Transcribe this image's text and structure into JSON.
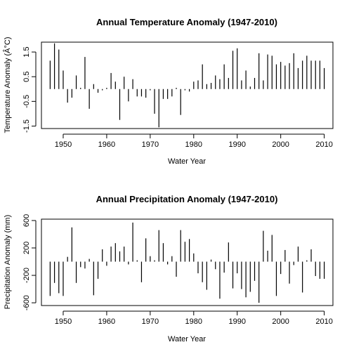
{
  "chart_data": [
    {
      "type": "bar",
      "title": "Annual Temperature Anomaly (1947-2010)",
      "xlabel": "Water Year",
      "ylabel": "Temperature Anomaly (Â°C)",
      "xlim": [
        1945,
        2012
      ],
      "ylim": [
        -1.6,
        1.9
      ],
      "xticks": [
        1950,
        1960,
        1970,
        1980,
        1990,
        2000,
        2010
      ],
      "yticks": [
        -1.5,
        -0.5,
        0.5,
        1.5
      ],
      "ytick_labels": [
        "-1.5",
        "-0.5",
        "0.5",
        "1.5"
      ],
      "grid": false,
      "x": [
        1947,
        1948,
        1949,
        1950,
        1951,
        1952,
        1953,
        1954,
        1955,
        1956,
        1957,
        1958,
        1959,
        1960,
        1961,
        1962,
        1963,
        1964,
        1965,
        1966,
        1967,
        1968,
        1969,
        1970,
        1971,
        1972,
        1973,
        1974,
        1975,
        1976,
        1977,
        1978,
        1979,
        1980,
        1981,
        1982,
        1983,
        1984,
        1985,
        1986,
        1987,
        1988,
        1989,
        1990,
        1991,
        1992,
        1993,
        1994,
        1995,
        1996,
        1997,
        1998,
        1999,
        2000,
        2001,
        2002,
        2003,
        2004,
        2005,
        2006,
        2007,
        2008,
        2009,
        2010
      ],
      "values": [
        1.15,
        1.85,
        1.6,
        0.75,
        -0.55,
        -0.35,
        0.55,
        0.05,
        1.3,
        -0.8,
        0.2,
        -0.15,
        -0.05,
        0.05,
        0.65,
        0.3,
        -1.25,
        0.5,
        -0.5,
        0.4,
        -0.3,
        -0.3,
        -0.35,
        -0.05,
        -1.0,
        -1.55,
        -0.4,
        -0.4,
        -0.3,
        0.05,
        -1.05,
        -0.05,
        -0.1,
        0.3,
        0.35,
        1.0,
        0.2,
        0.25,
        0.55,
        0.4,
        1.0,
        0.45,
        1.55,
        1.65,
        0.35,
        0.75,
        0.1,
        0.45,
        1.45,
        0.35,
        1.4,
        1.35,
        1.0,
        1.1,
        0.95,
        1.05,
        1.45,
        0.85,
        1.15,
        1.35,
        1.15,
        1.15,
        1.15,
        0.85
      ]
    },
    {
      "type": "bar",
      "title": "Annual Precipitation Anomaly (1947-2010)",
      "xlabel": "Water Year",
      "ylabel": "Precipitation Anomaly (mm)",
      "xlim": [
        1945,
        2012
      ],
      "ylim": [
        -640,
        620
      ],
      "xticks": [
        1950,
        1960,
        1970,
        1980,
        1990,
        2000,
        2010
      ],
      "yticks": [
        -600,
        -200,
        200,
        600
      ],
      "ytick_labels": [
        "-600",
        "-200",
        "200",
        "600"
      ],
      "grid": false,
      "x": [
        1947,
        1948,
        1949,
        1950,
        1951,
        1952,
        1953,
        1954,
        1955,
        1956,
        1957,
        1958,
        1959,
        1960,
        1961,
        1962,
        1963,
        1964,
        1965,
        1966,
        1967,
        1968,
        1969,
        1970,
        1971,
        1972,
        1973,
        1974,
        1975,
        1976,
        1977,
        1978,
        1979,
        1980,
        1981,
        1982,
        1983,
        1984,
        1985,
        1986,
        1987,
        1988,
        1989,
        1990,
        1991,
        1992,
        1993,
        1994,
        1995,
        1996,
        1997,
        1998,
        1999,
        2000,
        2001,
        2002,
        2003,
        2004,
        2005,
        2006,
        2007,
        2008,
        2009,
        2010
      ],
      "values": [
        -500,
        -310,
        -460,
        -500,
        70,
        500,
        -310,
        -80,
        -100,
        40,
        -490,
        -250,
        180,
        -60,
        220,
        270,
        150,
        220,
        -40,
        570,
        20,
        -300,
        340,
        80,
        20,
        460,
        270,
        -40,
        80,
        -220,
        460,
        290,
        330,
        120,
        -170,
        -300,
        -410,
        30,
        -110,
        -540,
        -160,
        280,
        -390,
        -170,
        -400,
        -520,
        -440,
        -280,
        -600,
        450,
        160,
        390,
        -500,
        -180,
        170,
        -320,
        -50,
        220,
        -450,
        20,
        180,
        -210,
        -250,
        -250
      ]
    }
  ]
}
